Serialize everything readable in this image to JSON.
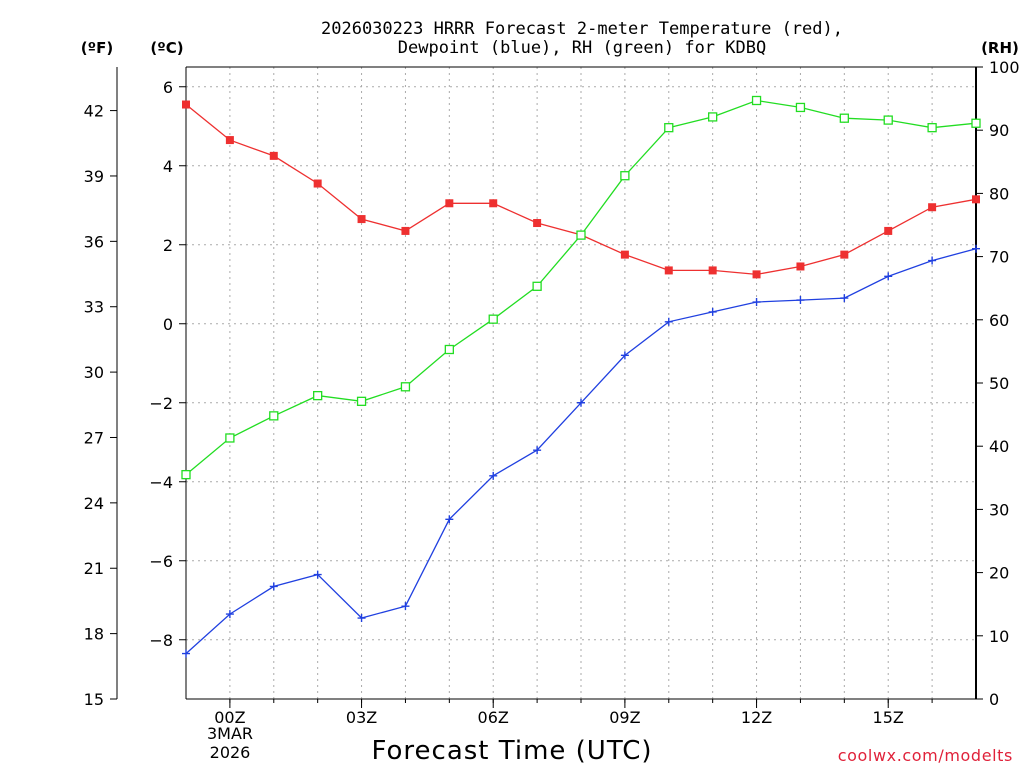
{
  "chart_data": {
    "type": "line",
    "title_line1": "2026030223 HRRR Forecast 2-meter Temperature (red),",
    "title_line2": "Dewpoint (blue), RH (green) for KDBQ",
    "xlabel": "Forecast Time (UTC)",
    "credit": "coolwx.com/modelts",
    "units": {
      "f": "(ºF)",
      "c": "(ºC)",
      "rh": "(RH)"
    },
    "x_hours": [
      -1,
      0,
      1,
      2,
      3,
      4,
      5,
      6,
      7,
      8,
      9,
      10,
      11,
      12,
      13,
      14,
      15,
      16,
      17
    ],
    "x_ticks": [
      {
        "hour": 0,
        "label": "00Z"
      },
      {
        "hour": 3,
        "label": "03Z"
      },
      {
        "hour": 6,
        "label": "06Z"
      },
      {
        "hour": 9,
        "label": "09Z"
      },
      {
        "hour": 12,
        "label": "12Z"
      },
      {
        "hour": 15,
        "label": "15Z"
      }
    ],
    "date_label": {
      "line1": "3MAR",
      "line2": "2026"
    },
    "xlim": [
      -1,
      17
    ],
    "c_axis": {
      "ylim": [
        -9.5,
        6.5
      ],
      "ticks": [
        -8,
        -6,
        -4,
        -2,
        0,
        2,
        4,
        6
      ],
      "labels": [
        "−8",
        "−6",
        "−4",
        "−2",
        "0",
        "2",
        "4",
        "6"
      ]
    },
    "f_axis": {
      "ylim": [
        15,
        44
      ],
      "ticks": [
        15,
        18,
        21,
        24,
        27,
        30,
        33,
        36,
        39,
        42
      ],
      "labels": [
        "15",
        "18",
        "21",
        "24",
        "27",
        "30",
        "33",
        "36",
        "39",
        "42"
      ]
    },
    "rh_axis": {
      "ylim": [
        0,
        100
      ],
      "ticks": [
        0,
        10,
        20,
        30,
        40,
        50,
        60,
        70,
        80,
        90,
        100
      ],
      "labels": [
        "0",
        "10",
        "20",
        "30",
        "40",
        "50",
        "60",
        "70",
        "80",
        "90",
        "100"
      ]
    },
    "series": [
      {
        "name": "Temperature",
        "unit": "C",
        "color": "#ee3030",
        "marker": "filled-square",
        "values": [
          5.55,
          4.65,
          4.25,
          3.55,
          2.65,
          2.35,
          3.05,
          3.05,
          2.55,
          2.25,
          1.75,
          1.35,
          1.35,
          1.25,
          1.45,
          1.75,
          2.35,
          2.95,
          3.15
        ]
      },
      {
        "name": "Dewpoint",
        "unit": "C",
        "color": "#2040e0",
        "marker": "plus",
        "values": [
          -8.35,
          -7.35,
          -6.65,
          -6.35,
          -7.45,
          -7.15,
          -4.95,
          -3.85,
          -3.2,
          -2.0,
          -0.8,
          0.05,
          0.3,
          0.55,
          0.6,
          0.65,
          1.2,
          1.6,
          1.9
        ]
      },
      {
        "name": "RH",
        "unit": "%",
        "color": "#22dd22",
        "marker": "open-square",
        "values": [
          35.5,
          41.3,
          44.8,
          48.0,
          47.1,
          49.4,
          55.3,
          60.1,
          65.3,
          73.4,
          82.8,
          90.4,
          92.1,
          94.7,
          93.6,
          91.9,
          91.6,
          90.4,
          91.1
        ]
      }
    ]
  }
}
